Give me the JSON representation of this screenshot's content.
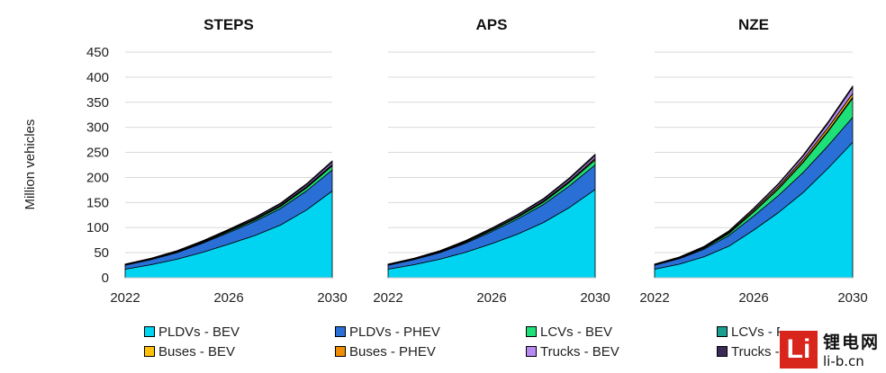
{
  "chart_data": {
    "type": "area",
    "stacked": true,
    "ylabel": "Million vehicles",
    "ylim": [
      0,
      450
    ],
    "yticks": [
      0,
      50,
      100,
      150,
      200,
      250,
      300,
      350,
      400,
      450
    ],
    "x": [
      2022,
      2023,
      2024,
      2025,
      2026,
      2027,
      2028,
      2029,
      2030
    ],
    "xtick_labels": [
      "2022",
      "2026",
      "2030"
    ],
    "grid": true,
    "series_info": [
      {
        "name": "PLDVs - BEV",
        "color": "#00d4f0"
      },
      {
        "name": "PLDVs - PHEV",
        "color": "#2a6fd6"
      },
      {
        "name": "LCVs - BEV",
        "color": "#1ee079"
      },
      {
        "name": "LCVs - PHEV",
        "color": "#1a9e8f"
      },
      {
        "name": "Buses - BEV",
        "color": "#ffc107"
      },
      {
        "name": "Buses - PHEV",
        "color": "#f08c00"
      },
      {
        "name": "Trucks - BEV",
        "color": "#b78af2"
      },
      {
        "name": "Trucks - PHEV",
        "color": "#3b2a57"
      }
    ],
    "panels": [
      {
        "title": "STEPS",
        "series": [
          {
            "name": "PLDVs - BEV",
            "values": [
              17,
              26,
              37,
              51,
              67,
              84,
              105,
              135,
              173
            ]
          },
          {
            "name": "PLDVs - PHEV",
            "values": [
              8,
              10,
              13,
              18,
              23,
              28,
              33,
              38,
              42
            ]
          },
          {
            "name": "LCVs - BEV",
            "values": [
              0.5,
              0.8,
              1.2,
              1.7,
              2.3,
              3,
              4,
              6,
              8
            ]
          },
          {
            "name": "LCVs - PHEV",
            "values": [
              0.1,
              0.1,
              0.2,
              0.2,
              0.3,
              0.4,
              0.5,
              0.6,
              0.7
            ]
          },
          {
            "name": "Buses - BEV",
            "values": [
              0.7,
              0.8,
              0.9,
              1,
              1.2,
              1.4,
              1.6,
              1.8,
              2
            ]
          },
          {
            "name": "Buses - PHEV",
            "values": [
              0.1,
              0.1,
              0.1,
              0.1,
              0.1,
              0.2,
              0.2,
              0.2,
              0.2
            ]
          },
          {
            "name": "Trucks - BEV",
            "values": [
              0.5,
              0.7,
              1,
              1.3,
              1.7,
              2.2,
              2.8,
              3.5,
              4.5
            ]
          },
          {
            "name": "Trucks - PHEV",
            "values": [
              0.3,
              0.4,
              0.6,
              0.8,
              1,
              1.3,
              1.7,
              2.2,
              2.8
            ]
          }
        ]
      },
      {
        "title": "APS",
        "series": [
          {
            "name": "PLDVs - BEV",
            "values": [
              17,
              26,
              37,
              51,
              68,
              87,
              110,
              140,
              176
            ]
          },
          {
            "name": "PLDVs - PHEV",
            "values": [
              8,
              10,
              13,
              18,
              24,
              30,
              36,
              43,
              49
            ]
          },
          {
            "name": "LCVs - BEV",
            "values": [
              0.5,
              0.8,
              1.2,
              1.8,
              2.5,
              3.4,
              4.6,
              7,
              10
            ]
          },
          {
            "name": "LCVs - PHEV",
            "values": [
              0.1,
              0.1,
              0.2,
              0.2,
              0.3,
              0.4,
              0.5,
              0.6,
              0.8
            ]
          },
          {
            "name": "Buses - BEV",
            "values": [
              0.7,
              0.8,
              0.9,
              1.1,
              1.3,
              1.5,
              1.8,
              2.1,
              2.4
            ]
          },
          {
            "name": "Buses - PHEV",
            "values": [
              0.1,
              0.1,
              0.1,
              0.1,
              0.2,
              0.2,
              0.2,
              0.2,
              0.3
            ]
          },
          {
            "name": "Trucks - BEV",
            "values": [
              0.5,
              0.7,
              1,
              1.4,
              1.8,
              2.4,
              3.1,
              4,
              5
            ]
          },
          {
            "name": "Trucks - PHEV",
            "values": [
              0.3,
              0.4,
              0.6,
              0.8,
              1.1,
              1.4,
              1.8,
              2.3,
              3
            ]
          }
        ]
      },
      {
        "title": "NZE",
        "series": [
          {
            "name": "PLDVs - BEV",
            "values": [
              17,
              27,
              42,
              63,
              95,
              130,
              170,
              218,
              270
            ]
          },
          {
            "name": "PLDVs - PHEV",
            "values": [
              8,
              11,
              15,
              21,
              28,
              34,
              40,
              45,
              50
            ]
          },
          {
            "name": "LCVs - BEV",
            "values": [
              0.5,
              1,
              2,
              4,
              8,
              13,
              20,
              28,
              38
            ]
          },
          {
            "name": "LCVs - PHEV",
            "values": [
              0.1,
              0.2,
              0.3,
              0.5,
              0.8,
              1.1,
              1.4,
              1.8,
              2.2
            ]
          },
          {
            "name": "Buses - BEV",
            "values": [
              0.7,
              1,
              1.4,
              2,
              2.7,
              3.6,
              4.6,
              5.8,
              7
            ]
          },
          {
            "name": "Buses - PHEV",
            "values": [
              0.1,
              0.1,
              0.1,
              0.2,
              0.2,
              0.3,
              0.3,
              0.4,
              0.4
            ]
          },
          {
            "name": "Trucks - BEV",
            "values": [
              0.5,
              0.8,
              1.3,
              2,
              3,
              4.5,
              6.5,
              9,
              12
            ]
          },
          {
            "name": "Trucks - PHEV",
            "values": [
              0.3,
              0.4,
              0.6,
              0.9,
              1.2,
              1.6,
              2,
              2.5,
              3
            ]
          }
        ]
      }
    ]
  },
  "watermark": {
    "logo_text": "Li",
    "cn_text": "锂电网",
    "url": "li-b.cn"
  }
}
